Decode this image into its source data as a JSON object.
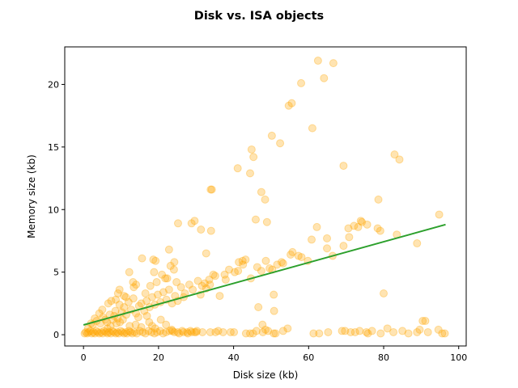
{
  "chart_data": {
    "type": "scatter",
    "title": "Disk vs. ISA objects",
    "xlabel": "Disk size (kb)",
    "ylabel": "Memory size (kb)",
    "xlim": [
      -5,
      102
    ],
    "ylim": [
      -0.9,
      23
    ],
    "xticks": [
      0,
      20,
      40,
      60,
      80,
      100
    ],
    "yticks": [
      0,
      5,
      10,
      15,
      20
    ],
    "grid": false,
    "colors": {
      "points": "#FFA500",
      "fit_line": "#2CA02C"
    },
    "series": [
      {
        "kind": "points",
        "points": [
          [
            0.3,
            0.1
          ],
          [
            0.6,
            0.2
          ],
          [
            1.0,
            0.1
          ],
          [
            1.3,
            0.2
          ],
          [
            1.8,
            0.3
          ],
          [
            2.2,
            0.1
          ],
          [
            2.6,
            0.2
          ],
          [
            3.0,
            0.1
          ],
          [
            3.4,
            0.3
          ],
          [
            3.8,
            0.2
          ],
          [
            4.2,
            0.1
          ],
          [
            4.7,
            0.2
          ],
          [
            5.1,
            0.1
          ],
          [
            5.5,
            0.3
          ],
          [
            6.0,
            0.2
          ],
          [
            6.4,
            0.1
          ],
          [
            6.8,
            0.2
          ],
          [
            7.3,
            0.1
          ],
          [
            7.7,
            0.3
          ],
          [
            8.1,
            0.2
          ],
          [
            8.6,
            0.1
          ],
          [
            9.0,
            0.2
          ],
          [
            9.4,
            0.1
          ],
          [
            9.9,
            0.3
          ],
          [
            10.3,
            0.2
          ],
          [
            10.8,
            0.1
          ],
          [
            11.2,
            0.2
          ],
          [
            11.6,
            0.1
          ],
          [
            12.1,
            0.3
          ],
          [
            12.5,
            0.2
          ],
          [
            13.0,
            0.1
          ],
          [
            13.6,
            0.2
          ],
          [
            14.2,
            0.1
          ],
          [
            15.0,
            0.3
          ],
          [
            15.8,
            0.2
          ],
          [
            16.5,
            0.1
          ],
          [
            17.3,
            0.3
          ],
          [
            18.1,
            0.2
          ],
          [
            18.9,
            0.1
          ],
          [
            19.6,
            0.2
          ],
          [
            20.4,
            0.3
          ],
          [
            21.2,
            0.1
          ],
          [
            22.0,
            0.2
          ],
          [
            23.0,
            0.3
          ],
          [
            24.2,
            0.2
          ],
          [
            25.5,
            0.1
          ],
          [
            26.6,
            0.2
          ],
          [
            27.8,
            0.1
          ],
          [
            28.8,
            0.2
          ],
          [
            30.0,
            0.2
          ],
          [
            33.8,
            0.2
          ],
          [
            35.9,
            0.3
          ],
          [
            37.2,
            0.2
          ],
          [
            40.1,
            0.2
          ],
          [
            43.3,
            0.1
          ],
          [
            46.1,
            0.3
          ],
          [
            47.8,
            0.2
          ],
          [
            50.7,
            0.1
          ],
          [
            53.2,
            0.3
          ],
          [
            54.4,
            0.5
          ],
          [
            68.9,
            0.3
          ],
          [
            69.7,
            0.3
          ],
          [
            71.2,
            0.2
          ],
          [
            73.6,
            0.3
          ],
          [
            75.8,
            0.1
          ],
          [
            76.9,
            0.3
          ],
          [
            79.2,
            0.1
          ],
          [
            82.6,
            0.2
          ],
          [
            86.6,
            0.1
          ],
          [
            88.9,
            0.2
          ],
          [
            91.8,
            0.2
          ],
          [
            95.6,
            0.1
          ],
          [
            96.3,
            0.1
          ],
          [
            1.2,
            0.5
          ],
          [
            2.5,
            0.8
          ],
          [
            3.5,
            1.1
          ],
          [
            4.5,
            0.9
          ],
          [
            5.2,
            1.4
          ],
          [
            6.3,
            1.0
          ],
          [
            7.0,
            1.6
          ],
          [
            7.8,
            1.2
          ],
          [
            8.5,
            1.9
          ],
          [
            9.1,
            1.3
          ],
          [
            9.6,
            2.4
          ],
          [
            10.2,
            1.8
          ],
          [
            10.8,
            2.2
          ],
          [
            11.4,
            1.6
          ],
          [
            12.0,
            2.6
          ],
          [
            12.7,
            2.0
          ],
          [
            13.3,
            2.9
          ],
          [
            14.0,
            1.7
          ],
          [
            14.8,
            2.3
          ],
          [
            15.4,
            2.5
          ],
          [
            16.2,
            1.9
          ],
          [
            16.8,
            2.7
          ],
          [
            17.6,
            2.2
          ],
          [
            18.3,
            3.0
          ],
          [
            19.0,
            2.4
          ],
          [
            19.8,
            3.2
          ],
          [
            20.5,
            2.6
          ],
          [
            21.3,
            3.4
          ],
          [
            22.1,
            2.8
          ],
          [
            22.8,
            3.6
          ],
          [
            23.6,
            2.5
          ],
          [
            24.4,
            3.1
          ],
          [
            25.1,
            2.7
          ],
          [
            26.0,
            3.8
          ],
          [
            27.0,
            3.3
          ],
          [
            28.2,
            4.0
          ],
          [
            29.1,
            3.6
          ],
          [
            30.5,
            4.3
          ],
          [
            31.6,
            3.9
          ],
          [
            32.3,
            4.1
          ],
          [
            33.5,
            4.4
          ],
          [
            35.1,
            4.7
          ],
          [
            36.3,
            3.1
          ],
          [
            37.6,
            4.8
          ],
          [
            38.8,
            5.2
          ],
          [
            40.3,
            5.0
          ],
          [
            41.4,
            5.8
          ],
          [
            42.5,
            5.6
          ],
          [
            43.2,
            6.0
          ],
          [
            44.6,
            4.5
          ],
          [
            46.3,
            5.4
          ],
          [
            47.4,
            5.1
          ],
          [
            48.6,
            5.9
          ],
          [
            49.6,
            5.3
          ],
          [
            50.3,
            5.2
          ],
          [
            51.6,
            5.6
          ],
          [
            52.8,
            5.8
          ],
          [
            55.2,
            6.4
          ],
          [
            57.3,
            6.3
          ],
          [
            59.8,
            5.9
          ],
          [
            64.9,
            6.9
          ],
          [
            66.4,
            6.3
          ],
          [
            69.3,
            7.1
          ],
          [
            70.8,
            7.8
          ],
          [
            72.1,
            8.7
          ],
          [
            73.2,
            8.6
          ],
          [
            73.9,
            9.1
          ],
          [
            75.6,
            8.8
          ],
          [
            78.4,
            8.5
          ],
          [
            79.1,
            8.3
          ],
          [
            83.5,
            8.0
          ],
          [
            88.9,
            7.3
          ],
          [
            94.8,
            9.6
          ],
          [
            5.8,
            1.2
          ],
          [
            8.2,
            1.5
          ],
          [
            11.3,
            3.0
          ],
          [
            12.2,
            5.0
          ],
          [
            13.4,
            3.8
          ],
          [
            15.6,
            6.1
          ],
          [
            18.6,
            6.0
          ],
          [
            19.2,
            5.9
          ],
          [
            20.9,
            4.8
          ],
          [
            22.3,
            4.5
          ],
          [
            23.2,
            5.5
          ],
          [
            24.1,
            5.2
          ],
          [
            24.8,
            4.2
          ],
          [
            26.7,
            3.0
          ],
          [
            31.2,
            3.2
          ],
          [
            32.7,
            3.7
          ],
          [
            33.7,
            4.0
          ],
          [
            34.6,
            4.8
          ],
          [
            37.9,
            4.4
          ],
          [
            41.2,
            5.1
          ],
          [
            42.4,
            5.9
          ],
          [
            45.9,
            9.2
          ],
          [
            48.4,
            10.8
          ],
          [
            48.9,
            9.0
          ],
          [
            50.7,
            3.2
          ],
          [
            53.2,
            5.7
          ],
          [
            55.7,
            6.6
          ],
          [
            58.1,
            6.2
          ],
          [
            60.8,
            7.6
          ],
          [
            62.2,
            8.6
          ],
          [
            64.9,
            7.7
          ],
          [
            70.6,
            8.5
          ],
          [
            74.2,
            9.0
          ],
          [
            80.0,
            3.3
          ],
          [
            81.0,
            0.5
          ],
          [
            85.0,
            0.3
          ],
          [
            89.6,
            0.4
          ],
          [
            90.4,
            1.1
          ],
          [
            91.1,
            1.1
          ],
          [
            94.6,
            0.4
          ],
          [
            72.4,
            0.2
          ],
          [
            75.4,
            0.2
          ],
          [
            61.3,
            0.1
          ],
          [
            62.8,
            0.1
          ],
          [
            65.2,
            0.2
          ],
          [
            46.6,
            2.2
          ],
          [
            47.7,
            0.8
          ],
          [
            48.5,
            0.4
          ],
          [
            49.2,
            0.3
          ],
          [
            50.8,
            1.9
          ],
          [
            51.2,
            0.1
          ],
          [
            44.4,
            0.1
          ],
          [
            45.2,
            0.1
          ],
          [
            39.2,
            0.2
          ],
          [
            35.2,
            0.2
          ],
          [
            31.7,
            0.2
          ],
          [
            30.2,
            0.3
          ],
          [
            28.5,
            0.3
          ],
          [
            26.3,
            0.3
          ],
          [
            25.1,
            0.2
          ],
          [
            23.7,
            0.3
          ],
          [
            27.6,
            0.2
          ],
          [
            29.6,
            0.2
          ],
          [
            25.2,
            8.9
          ],
          [
            28.8,
            8.9
          ],
          [
            29.6,
            9.1
          ],
          [
            31.3,
            8.4
          ],
          [
            32.7,
            6.5
          ],
          [
            34.0,
            8.3
          ],
          [
            34.2,
            11.6
          ],
          [
            33.9,
            11.6
          ],
          [
            41.1,
            13.3
          ],
          [
            44.4,
            12.9
          ],
          [
            44.8,
            14.8
          ],
          [
            45.3,
            14.2
          ],
          [
            47.4,
            11.4
          ],
          [
            50.2,
            15.9
          ],
          [
            52.4,
            15.3
          ],
          [
            54.7,
            18.3
          ],
          [
            55.5,
            18.5
          ],
          [
            58.0,
            20.1
          ],
          [
            61.0,
            16.5
          ],
          [
            62.5,
            21.9
          ],
          [
            64.1,
            20.5
          ],
          [
            66.6,
            21.7
          ],
          [
            69.3,
            13.5
          ],
          [
            82.9,
            14.4
          ],
          [
            84.2,
            14.0
          ],
          [
            78.6,
            10.8
          ],
          [
            24.2,
            5.8
          ],
          [
            22.8,
            6.8
          ],
          [
            21.8,
            4.5
          ],
          [
            19.5,
            4.2
          ],
          [
            18.8,
            5.0
          ],
          [
            17.8,
            3.9
          ],
          [
            16.5,
            3.3
          ],
          [
            14.0,
            4.0
          ],
          [
            13.2,
            4.2
          ],
          [
            10.8,
            3.1
          ],
          [
            9.6,
            3.6
          ],
          [
            9.2,
            3.3
          ],
          [
            8.6,
            2.8
          ],
          [
            7.4,
            2.7
          ],
          [
            6.6,
            2.5
          ],
          [
            5.0,
            2.0
          ],
          [
            4.2,
            1.7
          ],
          [
            3.0,
            1.3
          ],
          [
            2.0,
            0.9
          ],
          [
            17.5,
            1.0
          ],
          [
            18.3,
            0.7
          ],
          [
            19.1,
            0.5
          ],
          [
            20.6,
            1.2
          ],
          [
            22.0,
            0.8
          ],
          [
            23.5,
            0.4
          ],
          [
            15.4,
            0.6
          ],
          [
            13.9,
            0.8
          ],
          [
            12.3,
            0.7
          ],
          [
            10.5,
            1.2
          ],
          [
            9.7,
            1.0
          ],
          [
            8.8,
            0.9
          ],
          [
            7.2,
            0.7
          ],
          [
            6.4,
            0.5
          ],
          [
            16.9,
            1.5
          ],
          [
            14.6,
            1.4
          ]
        ]
      },
      {
        "kind": "fit_line",
        "x": [
          0,
          96.5
        ],
        "y": [
          0.78,
          8.8
        ]
      }
    ]
  }
}
